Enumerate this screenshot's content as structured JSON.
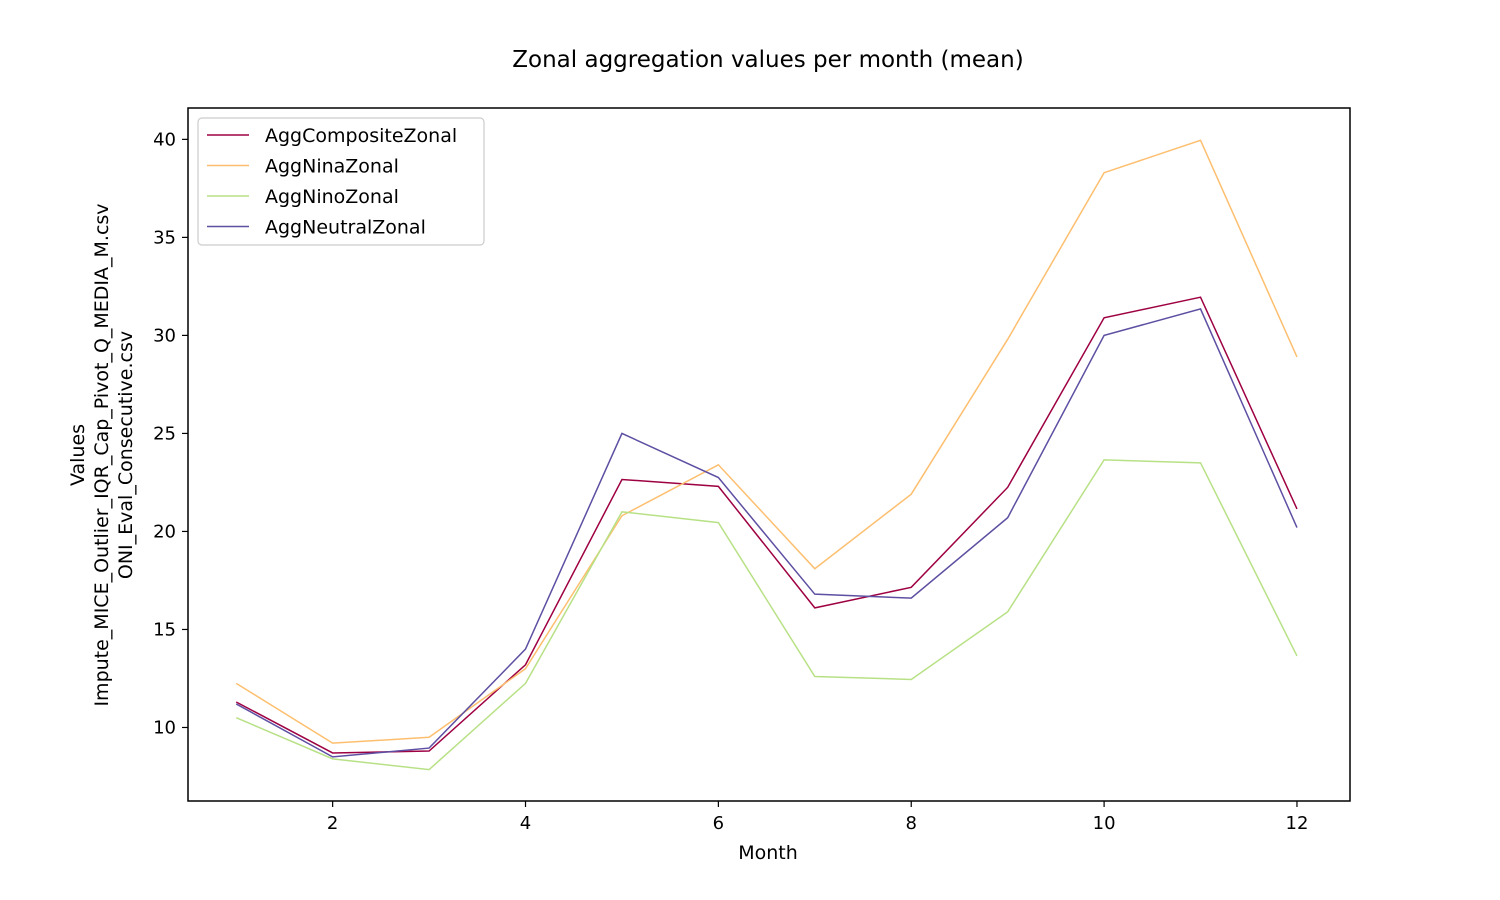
{
  "chart_data": {
    "type": "line",
    "title": "Zonal aggregation values per month (mean)",
    "xlabel": "Month",
    "ylabel_lines": [
      "Values",
      "Impute_MICE_Outlier_IQR_Cap_Pivot_Q_MEDIA_M.csv",
      "ONI_Eval_Consecutive.csv"
    ],
    "xlim": [
      0.5,
      12.55
    ],
    "ylim": [
      6.25,
      41.6
    ],
    "xticks": [
      2,
      4,
      6,
      8,
      10,
      12
    ],
    "yticks": [
      10,
      15,
      20,
      25,
      30,
      35,
      40
    ],
    "grid": false,
    "legend_position": "upper-left",
    "x": [
      1,
      2,
      3,
      4,
      5,
      6,
      7,
      8,
      9,
      10,
      11,
      12
    ],
    "series": [
      {
        "name": "AggCompositeZonal",
        "color": "#9e0142",
        "values": [
          11.3,
          8.7,
          8.8,
          13.2,
          22.65,
          22.3,
          16.1,
          17.15,
          22.25,
          30.9,
          31.95,
          21.15
        ]
      },
      {
        "name": "AggNinaZonal",
        "color": "#fdbf6f",
        "values": [
          12.25,
          9.2,
          9.5,
          13.0,
          20.8,
          23.4,
          18.1,
          21.9,
          29.8,
          38.3,
          39.95,
          28.9
        ]
      },
      {
        "name": "AggNinoZonal",
        "color": "#b8e186",
        "values": [
          10.5,
          8.4,
          7.85,
          12.25,
          21.0,
          20.45,
          12.6,
          12.45,
          15.9,
          23.65,
          23.5,
          13.65
        ]
      },
      {
        "name": "AggNeutralZonal",
        "color": "#5e4fa2",
        "values": [
          11.2,
          8.5,
          8.95,
          14.0,
          25.0,
          22.75,
          16.8,
          16.6,
          20.7,
          30.0,
          31.35,
          20.2
        ]
      }
    ]
  }
}
